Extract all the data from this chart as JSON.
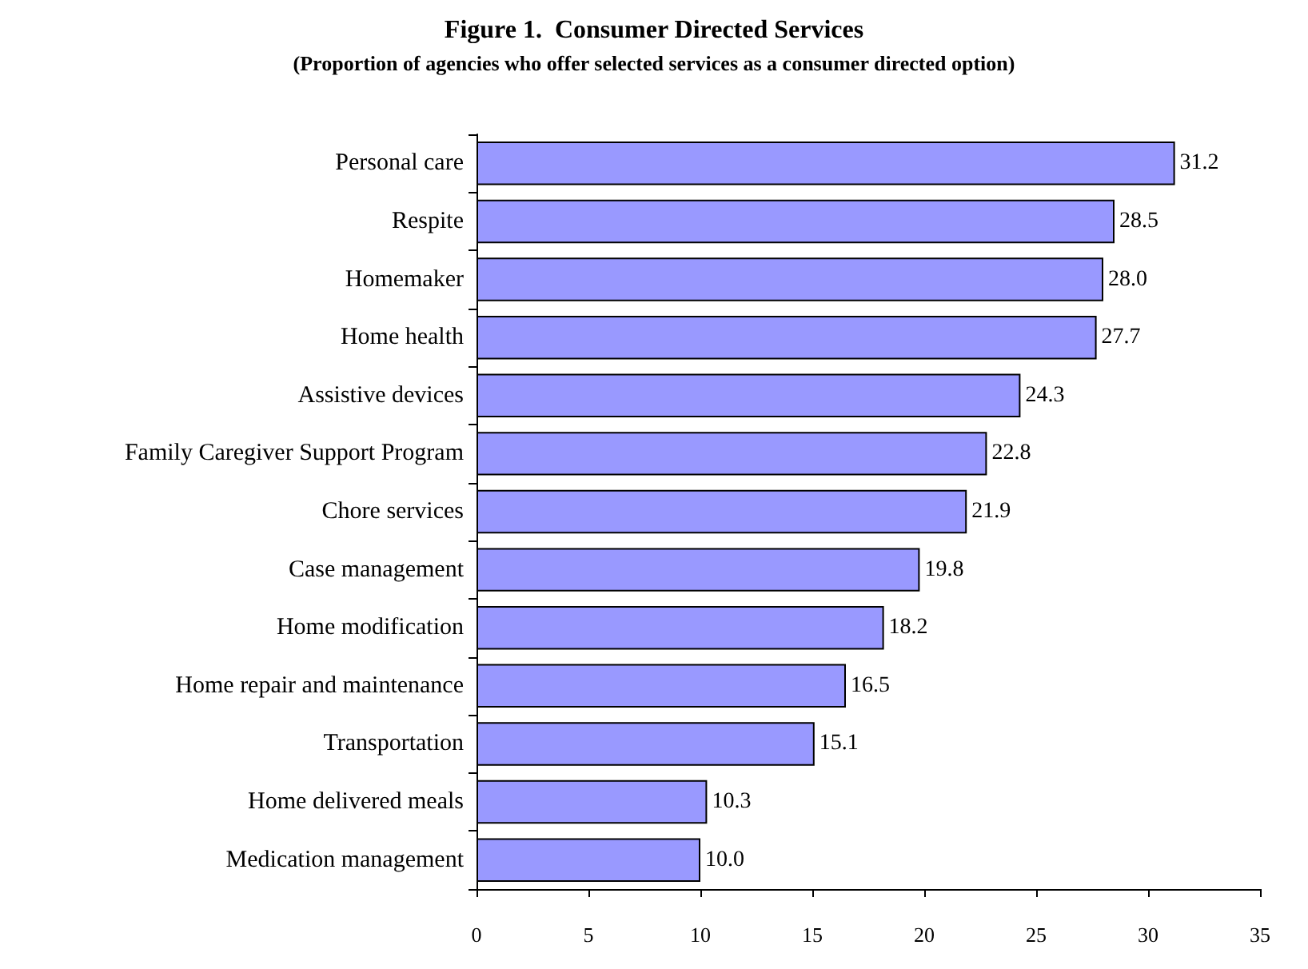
{
  "chart_data": {
    "type": "bar",
    "orientation": "horizontal",
    "title": "Figure 1.  Consumer Directed Services",
    "subtitle": "(Proportion of agencies who offer selected services as a consumer directed option)",
    "categories": [
      "Personal care",
      "Respite",
      "Homemaker",
      "Home health",
      "Assistive devices",
      "Family Caregiver Support Program",
      "Chore services",
      "Case management",
      "Home modification",
      "Home repair and maintenance",
      "Transportation",
      "Home delivered meals",
      "Medication management"
    ],
    "values": [
      31.2,
      28.5,
      28.0,
      27.7,
      24.3,
      22.8,
      21.9,
      19.8,
      18.2,
      16.5,
      15.1,
      10.3,
      10.0
    ],
    "value_labels": [
      "31.2",
      "28.5",
      "28.0",
      "27.7",
      "24.3",
      "22.8",
      "21.9",
      "19.8",
      "18.2",
      "16.5",
      "15.1",
      "10.3",
      "10.0"
    ],
    "color": "#9999ff",
    "xlim": [
      0,
      35
    ],
    "xticks": [
      0,
      5,
      10,
      15,
      20,
      25,
      30,
      35
    ]
  }
}
